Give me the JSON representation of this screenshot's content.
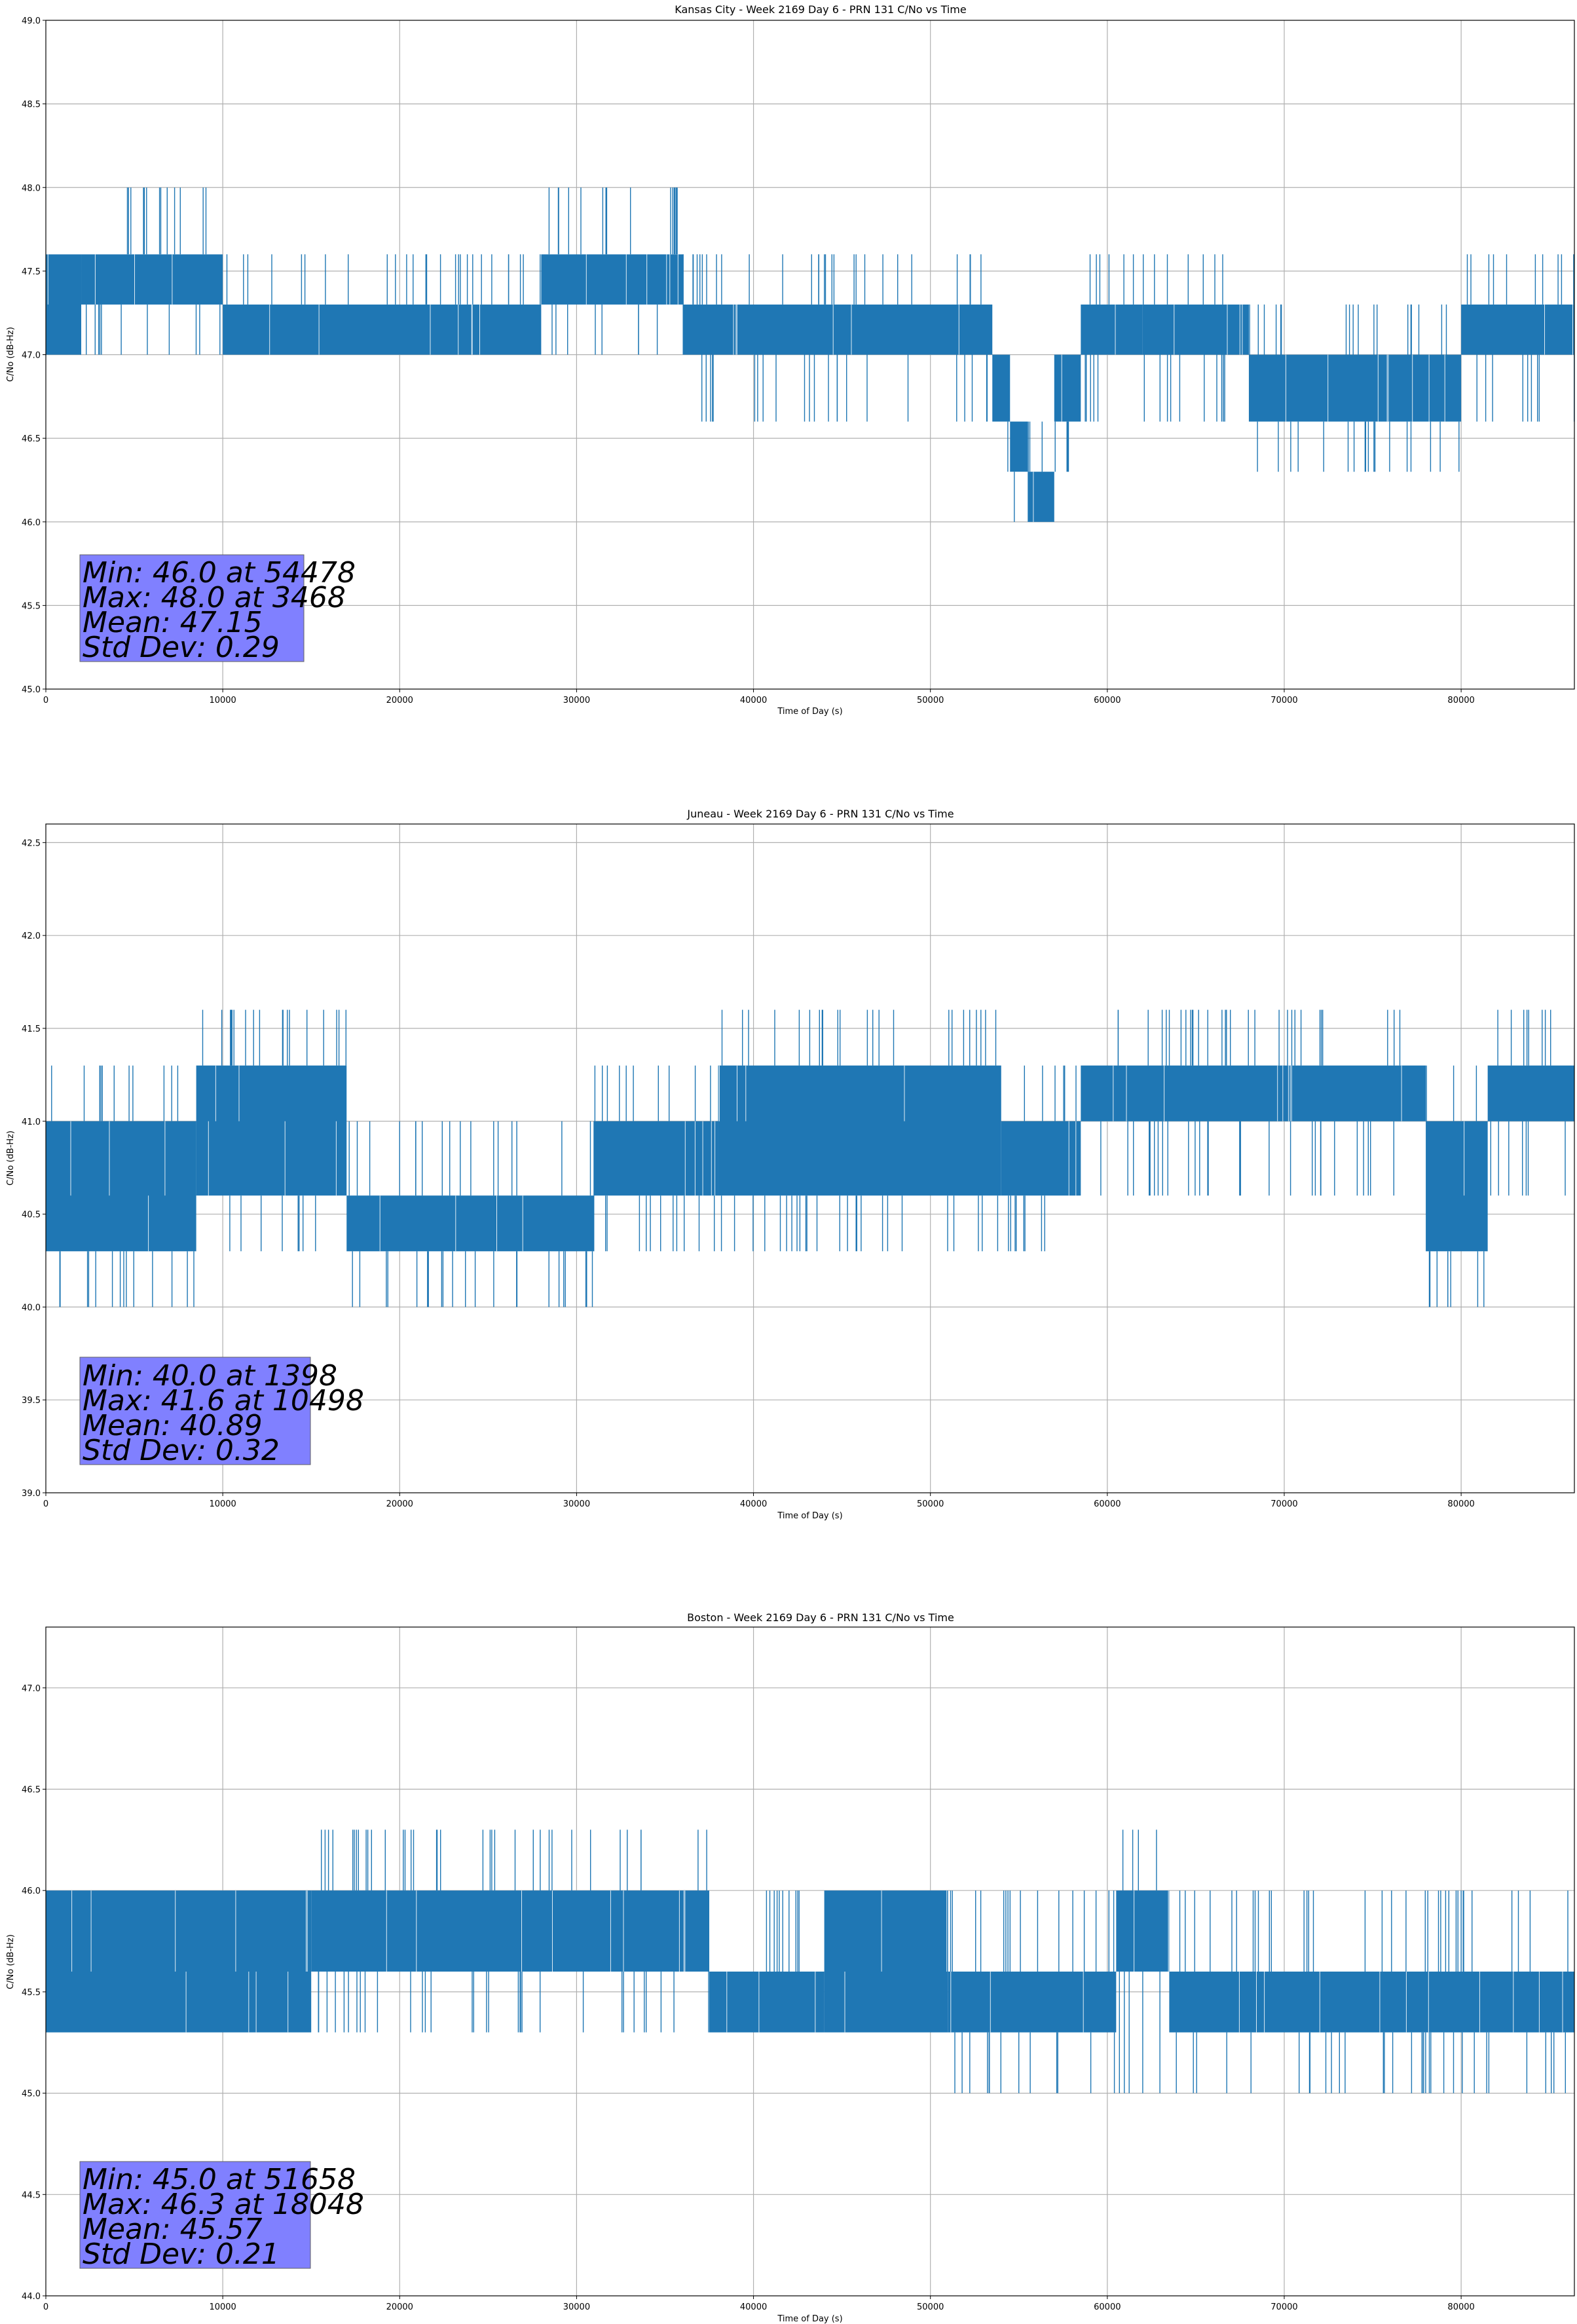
{
  "chart_data": [
    {
      "type": "line",
      "title": "Kansas City - Week 2169 Day 6 - PRN 131 C/No vs Time",
      "xlabel": "Time of Day (s)",
      "ylabel": "C/No (dB-Hz)",
      "xlim": [
        0,
        86400
      ],
      "ylim": [
        45.0,
        49.0
      ],
      "xticks": [
        0,
        10000,
        20000,
        30000,
        40000,
        50000,
        60000,
        70000,
        80000
      ],
      "xtick_labels": [
        "0",
        "10000",
        "20000",
        "30000",
        "40000",
        "50000",
        "60000",
        "70000",
        "80000"
      ],
      "yticks": [
        45.0,
        45.5,
        46.0,
        46.5,
        47.0,
        47.5,
        48.0,
        48.5,
        49.0
      ],
      "ytick_labels": [
        "45.0",
        "45.5",
        "46.0",
        "46.5",
        "47.0",
        "47.5",
        "48.0",
        "48.5",
        "49.0"
      ],
      "grid": true,
      "series_color": "#1f77b4",
      "segments": [
        {
          "x": [
            0,
            2000
          ],
          "levels": [
            47.3,
            47.6,
            47.0
          ],
          "y_min": 47.0,
          "y_max": 47.6
        },
        {
          "x": [
            2000,
            10000
          ],
          "levels": [
            47.3,
            47.6
          ],
          "y_min": 47.0,
          "y_max": 48.0
        },
        {
          "x": [
            10000,
            28000
          ],
          "levels": [
            47.0,
            47.3
          ],
          "y_min": 47.0,
          "y_max": 47.6
        },
        {
          "x": [
            28000,
            36000
          ],
          "levels": [
            47.3,
            47.6
          ],
          "y_min": 47.0,
          "y_max": 48.0
        },
        {
          "x": [
            36000,
            53500
          ],
          "levels": [
            47.0,
            47.3
          ],
          "y_min": 46.6,
          "y_max": 47.6
        },
        {
          "x": [
            53500,
            54500
          ],
          "levels": [
            46.6,
            47.0
          ],
          "y_min": 46.3,
          "y_max": 47.0
        },
        {
          "x": [
            54500,
            55500
          ],
          "levels": [
            46.3,
            46.6
          ],
          "y_min": 46.0,
          "y_max": 46.6
        },
        {
          "x": [
            55500,
            57000
          ],
          "levels": [
            46.0,
            46.3
          ],
          "y_min": 46.0,
          "y_max": 46.6
        },
        {
          "x": [
            57000,
            58500
          ],
          "levels": [
            46.6,
            47.0
          ],
          "y_min": 46.3,
          "y_max": 47.0
        },
        {
          "x": [
            58500,
            62000
          ],
          "levels": [
            47.0,
            47.3
          ],
          "y_min": 46.6,
          "y_max": 47.6
        },
        {
          "x": [
            62000,
            68000
          ],
          "levels": [
            47.0,
            47.3
          ],
          "y_min": 46.6,
          "y_max": 47.6
        },
        {
          "x": [
            68000,
            80000
          ],
          "levels": [
            46.6,
            47.0
          ],
          "y_min": 46.3,
          "y_max": 47.3
        },
        {
          "x": [
            80000,
            86400
          ],
          "levels": [
            47.0,
            47.3
          ],
          "y_min": 46.6,
          "y_max": 47.6
        }
      ],
      "annotation": {
        "min": "Min: 46.0 at 54478",
        "max": "Max: 48.0 at 3468",
        "mean": "Mean: 47.15",
        "std": "Std Dev: 0.29",
        "box_color": "#8080ff"
      }
    },
    {
      "type": "line",
      "title": "Juneau - Week 2169 Day 6 - PRN 131 C/No vs Time",
      "xlabel": "Time of Day (s)",
      "ylabel": "C/No (dB-Hz)",
      "xlim": [
        0,
        86400
      ],
      "ylim": [
        39.0,
        42.6
      ],
      "xticks": [
        0,
        10000,
        20000,
        30000,
        40000,
        50000,
        60000,
        70000,
        80000
      ],
      "xtick_labels": [
        "0",
        "10000",
        "20000",
        "30000",
        "40000",
        "50000",
        "60000",
        "70000",
        "80000"
      ],
      "yticks": [
        39.0,
        39.5,
        40.0,
        40.5,
        41.0,
        41.5,
        42.0,
        42.5
      ],
      "ytick_labels": [
        "39.0",
        "39.5",
        "40.0",
        "40.5",
        "41.0",
        "41.5",
        "42.0",
        "42.5"
      ],
      "grid": true,
      "series_color": "#1f77b4",
      "segments": [
        {
          "x": [
            0,
            8500
          ],
          "levels": [
            40.3,
            40.6,
            41.0
          ],
          "y_min": 40.0,
          "y_max": 41.3
        },
        {
          "x": [
            8500,
            17000
          ],
          "levels": [
            40.6,
            41.0,
            41.3
          ],
          "y_min": 40.3,
          "y_max": 41.6
        },
        {
          "x": [
            17000,
            31000
          ],
          "levels": [
            40.3,
            40.6
          ],
          "y_min": 40.0,
          "y_max": 41.0
        },
        {
          "x": [
            31000,
            38000
          ],
          "levels": [
            40.6,
            41.0
          ],
          "y_min": 40.3,
          "y_max": 41.3
        },
        {
          "x": [
            38000,
            54000
          ],
          "levels": [
            40.6,
            41.0,
            41.3
          ],
          "y_min": 40.3,
          "y_max": 41.6
        },
        {
          "x": [
            54000,
            58500
          ],
          "levels": [
            40.6,
            41.0
          ],
          "y_min": 40.3,
          "y_max": 41.3
        },
        {
          "x": [
            58500,
            78000
          ],
          "levels": [
            41.0,
            41.3
          ],
          "y_min": 40.6,
          "y_max": 41.6
        },
        {
          "x": [
            78000,
            81500
          ],
          "levels": [
            40.3,
            40.6,
            41.0
          ],
          "y_min": 40.0,
          "y_max": 41.3
        },
        {
          "x": [
            81500,
            86400
          ],
          "levels": [
            41.0,
            41.3
          ],
          "y_min": 40.6,
          "y_max": 41.6
        }
      ],
      "annotation": {
        "min": "Min: 40.0 at 1398",
        "max": "Max: 41.6 at 10498",
        "mean": "Mean: 40.89",
        "std": "Std Dev: 0.32",
        "box_color": "#8080ff"
      }
    },
    {
      "type": "line",
      "title": "Boston - Week 2169 Day 6 - PRN 131 C/No vs Time",
      "xlabel": "Time of Day (s)",
      "ylabel": "C/No (dB-Hz)",
      "xlim": [
        0,
        86400
      ],
      "ylim": [
        44.0,
        47.3
      ],
      "xticks": [
        0,
        10000,
        20000,
        30000,
        40000,
        50000,
        60000,
        70000,
        80000
      ],
      "xtick_labels": [
        "0",
        "10000",
        "20000",
        "30000",
        "40000",
        "50000",
        "60000",
        "70000",
        "80000"
      ],
      "yticks": [
        44.0,
        44.5,
        45.0,
        45.5,
        46.0,
        46.5,
        47.0
      ],
      "ytick_labels": [
        "44.0",
        "44.5",
        "45.0",
        "45.5",
        "46.0",
        "46.5",
        "47.0"
      ],
      "grid": true,
      "series_color": "#1f77b4",
      "segments": [
        {
          "x": [
            0,
            15000
          ],
          "levels": [
            45.3,
            45.6,
            46.0
          ],
          "y_min": 45.3,
          "y_max": 46.0
        },
        {
          "x": [
            15000,
            37500
          ],
          "levels": [
            45.6,
            46.0
          ],
          "y_min": 45.3,
          "y_max": 46.3
        },
        {
          "x": [
            37500,
            44000
          ],
          "levels": [
            45.3,
            45.6
          ],
          "y_min": 45.3,
          "y_max": 46.0
        },
        {
          "x": [
            44000,
            51000
          ],
          "levels": [
            45.3,
            45.6,
            46.0
          ],
          "y_min": 45.3,
          "y_max": 46.0
        },
        {
          "x": [
            51000,
            60500
          ],
          "levels": [
            45.3,
            45.6
          ],
          "y_min": 45.0,
          "y_max": 46.0
        },
        {
          "x": [
            60500,
            63500
          ],
          "levels": [
            45.6,
            46.0
          ],
          "y_min": 45.0,
          "y_max": 46.3
        },
        {
          "x": [
            63500,
            86400
          ],
          "levels": [
            45.3,
            45.6
          ],
          "y_min": 45.0,
          "y_max": 46.0
        }
      ],
      "annotation": {
        "min": "Min: 45.0 at 51658",
        "max": "Max: 46.3 at 18048",
        "mean": "Mean: 45.57",
        "std": "Std Dev: 0.21",
        "box_color": "#8080ff"
      }
    }
  ]
}
